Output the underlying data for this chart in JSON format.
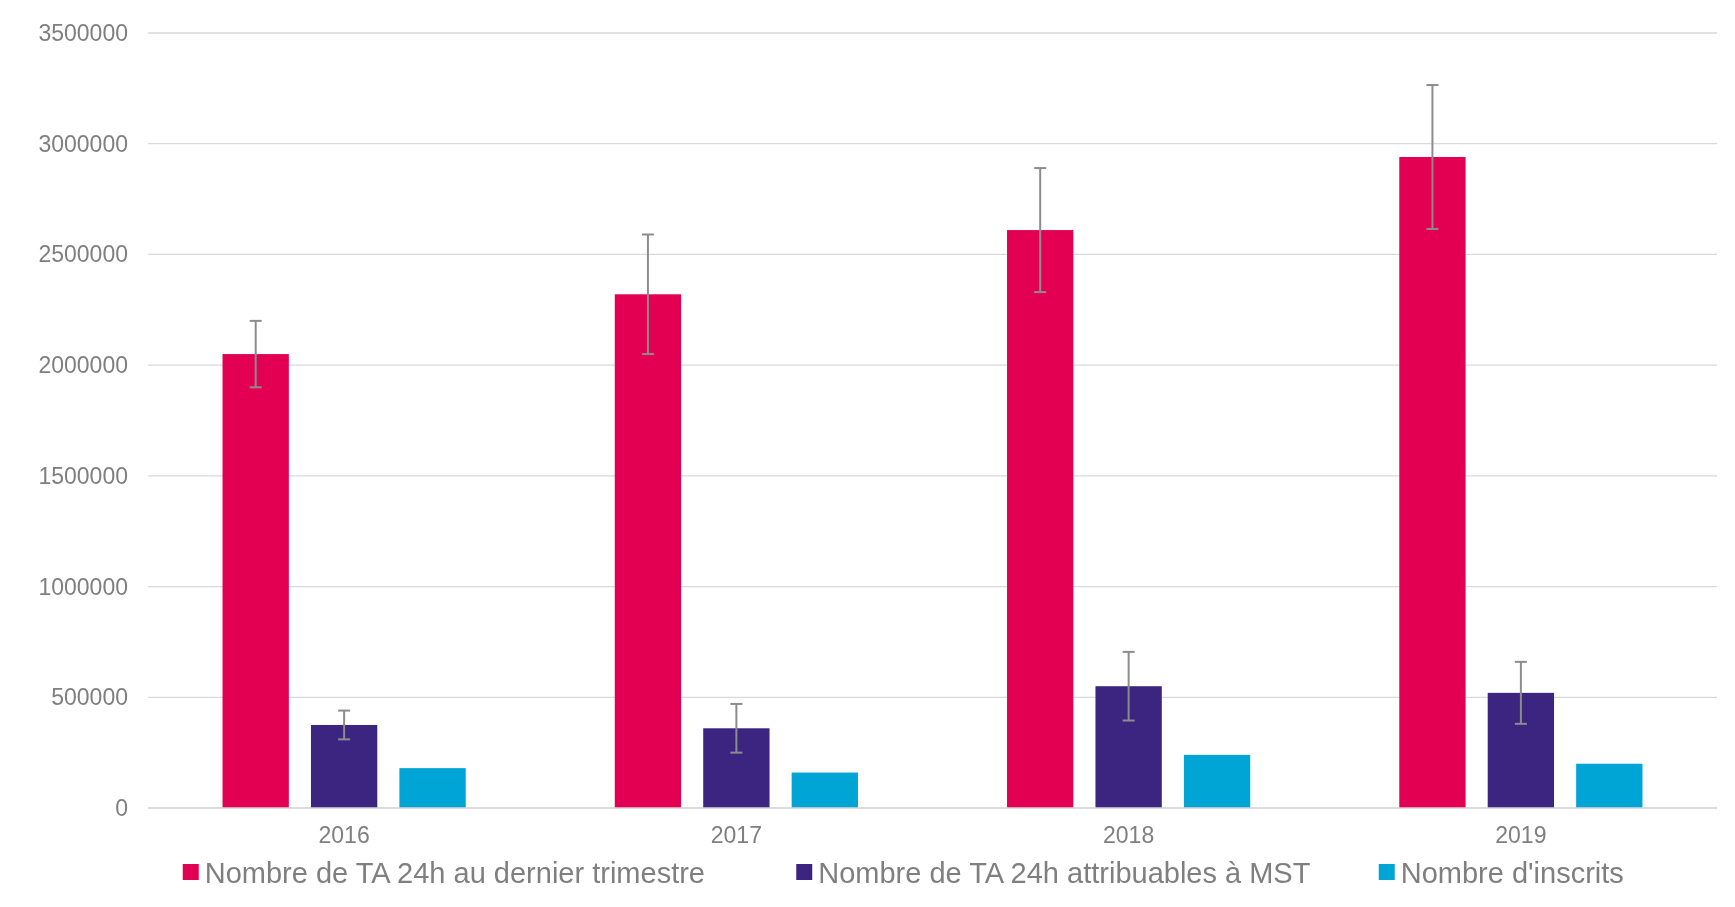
{
  "chart_data": {
    "type": "bar",
    "categories": [
      "2016",
      "2017",
      "2018",
      "2019"
    ],
    "series": [
      {
        "name": "Nombre de TA 24h au dernier trimestre",
        "color": "#e30052",
        "values": [
          2050000,
          2320000,
          2610000,
          2940000
        ],
        "errors": [
          150000,
          270000,
          280000,
          325000
        ]
      },
      {
        "name": "Nombre de TA 24h attribuables à MST",
        "color": "#3c2580",
        "values": [
          375000,
          360000,
          550000,
          520000
        ],
        "errors": [
          65000,
          110000,
          155000,
          140000
        ]
      },
      {
        "name": "Nombre d'inscrits",
        "color": "#00a5d6",
        "values": [
          180000,
          160000,
          240000,
          200000
        ]
      }
    ],
    "ylim": [
      0,
      3500000
    ],
    "yticks": [
      0,
      500000,
      1000000,
      1500000,
      2000000,
      2500000,
      3000000,
      3500000
    ],
    "grid": "y",
    "legend": "bottom"
  }
}
